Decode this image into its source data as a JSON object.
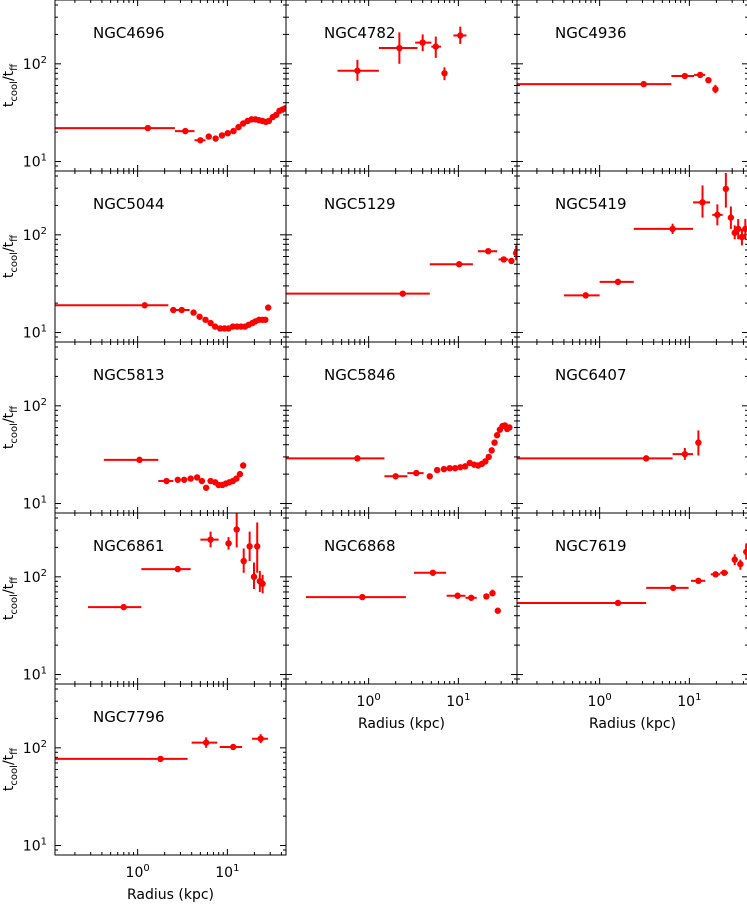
{
  "figure": {
    "ylabel_main": "t",
    "ylabel_sub1": "cool",
    "ylabel_sep": "/t",
    "ylabel_sub2": "ff",
    "xlabel": "Radius (kpc)",
    "marker_color": "#ff0000"
  },
  "chart_data": [
    {
      "type": "scatter",
      "title": "NGC4696",
      "xscale": "log",
      "yscale": "log",
      "xlim": [
        0.12,
        45
      ],
      "ylim": [
        8,
        450
      ],
      "y_tick_labels": [
        "10^1",
        "10^2"
      ],
      "points": [
        {
          "x": 1.3,
          "y": 22,
          "xerr": [
            0.12,
            2.6
          ]
        },
        {
          "x": 3.4,
          "y": 20.5,
          "xerr": [
            2.6,
            4.3
          ]
        },
        {
          "x": 5.0,
          "y": 16.5,
          "xerr": [
            4.3,
            5.7
          ]
        },
        {
          "x": 6.2,
          "y": 18
        },
        {
          "x": 7.4,
          "y": 17.2
        },
        {
          "x": 8.7,
          "y": 18.5
        },
        {
          "x": 10.1,
          "y": 19.5
        },
        {
          "x": 11.7,
          "y": 20.5
        },
        {
          "x": 13.3,
          "y": 22.5
        },
        {
          "x": 15.0,
          "y": 24.5
        },
        {
          "x": 16.8,
          "y": 26
        },
        {
          "x": 18.6,
          "y": 27
        },
        {
          "x": 20.5,
          "y": 27
        },
        {
          "x": 22.5,
          "y": 26.5
        },
        {
          "x": 24.6,
          "y": 26
        },
        {
          "x": 26.8,
          "y": 25.5
        },
        {
          "x": 29.0,
          "y": 26
        },
        {
          "x": 32.0,
          "y": 28.5
        },
        {
          "x": 35.0,
          "y": 30
        },
        {
          "x": 38.0,
          "y": 33
        },
        {
          "x": 41.0,
          "y": 34
        },
        {
          "x": 44.0,
          "y": 35
        }
      ]
    },
    {
      "type": "scatter",
      "title": "NGC4782",
      "xscale": "log",
      "yscale": "log",
      "xlim": [
        0.12,
        45
      ],
      "ylim": [
        8,
        450
      ],
      "points": [
        {
          "x": 0.75,
          "y": 85,
          "xerr": [
            0.45,
            1.3
          ],
          "yerr": [
            67,
            110
          ]
        },
        {
          "x": 2.2,
          "y": 145,
          "xerr": [
            1.3,
            3.5
          ],
          "yerr": [
            100,
            210
          ]
        },
        {
          "x": 4.0,
          "y": 165,
          "xerr": [
            3.3,
            5.0
          ],
          "yerr": [
            135,
            200
          ]
        },
        {
          "x": 5.6,
          "y": 150,
          "xerr": [
            5.0,
            6.4
          ],
          "yerr": [
            115,
            190
          ]
        },
        {
          "x": 7.0,
          "y": 80,
          "yerr": [
            68,
            92
          ]
        },
        {
          "x": 10.5,
          "y": 195,
          "xerr": [
            8.8,
            12.3
          ],
          "yerr": [
            160,
            240
          ]
        }
      ]
    },
    {
      "type": "scatter",
      "title": "NGC4936",
      "xscale": "log",
      "yscale": "log",
      "xlim": [
        0.12,
        45
      ],
      "ylim": [
        8,
        450
      ],
      "points": [
        {
          "x": 3.1,
          "y": 62,
          "xerr": [
            0.12,
            6.3
          ]
        },
        {
          "x": 8.9,
          "y": 75,
          "xerr": [
            6.3,
            11.3
          ]
        },
        {
          "x": 13.2,
          "y": 77,
          "xerr": [
            11.3,
            15.0
          ],
          "yerr": [
            72,
            82
          ]
        },
        {
          "x": 16.3,
          "y": 68
        },
        {
          "x": 19.5,
          "y": 55,
          "yerr": [
            50,
            61
          ]
        }
      ]
    },
    {
      "type": "scatter",
      "title": "NGC5044",
      "xscale": "log",
      "yscale": "log",
      "xlim": [
        0.12,
        45
      ],
      "ylim": [
        8,
        450
      ],
      "y_tick_labels": [
        "10^1",
        "10^2"
      ],
      "points": [
        {
          "x": 1.2,
          "y": 19,
          "xerr": [
            0.12,
            2.2
          ]
        },
        {
          "x": 2.5,
          "y": 17
        },
        {
          "x": 3.1,
          "y": 17,
          "xerr": [
            2.3,
            3.8
          ]
        },
        {
          "x": 4.2,
          "y": 16
        },
        {
          "x": 4.9,
          "y": 14.5
        },
        {
          "x": 5.7,
          "y": 13.5
        },
        {
          "x": 6.5,
          "y": 12.5
        },
        {
          "x": 7.3,
          "y": 11.5
        },
        {
          "x": 8.3,
          "y": 11
        },
        {
          "x": 9.3,
          "y": 11
        },
        {
          "x": 10.3,
          "y": 11
        },
        {
          "x": 11.5,
          "y": 11.5
        },
        {
          "x": 12.8,
          "y": 11.5
        },
        {
          "x": 14.2,
          "y": 11.5
        },
        {
          "x": 15.7,
          "y": 11.5
        },
        {
          "x": 17.3,
          "y": 12
        },
        {
          "x": 19.0,
          "y": 12.5
        },
        {
          "x": 20.5,
          "y": 13
        },
        {
          "x": 22.5,
          "y": 13.5
        },
        {
          "x": 24.5,
          "y": 13.5
        },
        {
          "x": 26.5,
          "y": 13.5
        },
        {
          "x": 28.5,
          "y": 18
        }
      ]
    },
    {
      "type": "scatter",
      "title": "NGC5129",
      "xscale": "log",
      "yscale": "log",
      "xlim": [
        0.12,
        45
      ],
      "ylim": [
        8,
        450
      ],
      "points": [
        {
          "x": 2.4,
          "y": 25,
          "xerr": [
            0.12,
            4.8
          ]
        },
        {
          "x": 10.2,
          "y": 50,
          "xerr": [
            4.8,
            14.5
          ]
        },
        {
          "x": 21.5,
          "y": 68,
          "xerr": [
            16.5,
            27.0
          ]
        },
        {
          "x": 32.0,
          "y": 56,
          "xerr": [
            28.0,
            36.0
          ]
        },
        {
          "x": 39.0,
          "y": 54
        },
        {
          "x": 44.0,
          "y": 65,
          "yerr": [
            55,
            78
          ]
        }
      ]
    },
    {
      "type": "scatter",
      "title": "NGC5419",
      "xscale": "log",
      "yscale": "log",
      "xlim": [
        0.12,
        45
      ],
      "ylim": [
        8,
        450
      ],
      "points": [
        {
          "x": 0.7,
          "y": 24,
          "xerr": [
            0.4,
            1.0
          ]
        },
        {
          "x": 1.6,
          "y": 33,
          "xerr": [
            1.0,
            2.4
          ]
        },
        {
          "x": 6.5,
          "y": 115,
          "xerr": [
            2.4,
            11.0
          ],
          "yerr": [
            102,
            130
          ]
        },
        {
          "x": 14.0,
          "y": 215,
          "xerr": [
            11.0,
            17.0
          ],
          "yerr": [
            150,
            320
          ]
        },
        {
          "x": 20.5,
          "y": 160,
          "xerr": [
            18.0,
            23.5
          ],
          "yerr": [
            125,
            205
          ]
        },
        {
          "x": 25.5,
          "y": 295,
          "yerr": [
            190,
            430
          ]
        },
        {
          "x": 29.0,
          "y": 150,
          "yerr": [
            115,
            195
          ]
        },
        {
          "x": 32.0,
          "y": 105,
          "yerr": [
            90,
            125
          ]
        },
        {
          "x": 35.0,
          "y": 115,
          "yerr": [
            90,
            145
          ]
        },
        {
          "x": 38.5,
          "y": 95,
          "yerr": [
            78,
            115
          ]
        },
        {
          "x": 42.0,
          "y": 115,
          "yerr": [
            90,
            145
          ]
        }
      ]
    },
    {
      "type": "scatter",
      "title": "NGC5813",
      "xscale": "log",
      "yscale": "log",
      "xlim": [
        0.12,
        45
      ],
      "ylim": [
        8,
        450
      ],
      "y_tick_labels": [
        "10^1",
        "10^2"
      ],
      "points": [
        {
          "x": 1.05,
          "y": 28,
          "xerr": [
            0.42,
            1.7
          ]
        },
        {
          "x": 2.1,
          "y": 17,
          "xerr": [
            1.7,
            2.5
          ]
        },
        {
          "x": 2.8,
          "y": 17.5
        },
        {
          "x": 3.3,
          "y": 17.5
        },
        {
          "x": 3.9,
          "y": 18
        },
        {
          "x": 4.6,
          "y": 18.5
        },
        {
          "x": 5.2,
          "y": 17
        },
        {
          "x": 5.8,
          "y": 14.5
        },
        {
          "x": 6.5,
          "y": 17
        },
        {
          "x": 7.3,
          "y": 16.5
        },
        {
          "x": 8.0,
          "y": 15.5
        },
        {
          "x": 8.8,
          "y": 15.5
        },
        {
          "x": 9.6,
          "y": 16
        },
        {
          "x": 10.5,
          "y": 16.5
        },
        {
          "x": 11.5,
          "y": 17
        },
        {
          "x": 12.6,
          "y": 18
        },
        {
          "x": 13.8,
          "y": 20
        },
        {
          "x": 15.0,
          "y": 24.5
        }
      ]
    },
    {
      "type": "scatter",
      "title": "NGC5846",
      "xscale": "log",
      "yscale": "log",
      "xlim": [
        0.12,
        45
      ],
      "ylim": [
        8,
        450
      ],
      "points": [
        {
          "x": 0.75,
          "y": 29,
          "xerr": [
            0.12,
            1.5
          ]
        },
        {
          "x": 2.0,
          "y": 19,
          "xerr": [
            1.5,
            2.7
          ]
        },
        {
          "x": 3.4,
          "y": 20.5,
          "xerr": [
            2.7,
            4.1
          ]
        },
        {
          "x": 4.8,
          "y": 19
        },
        {
          "x": 5.8,
          "y": 22
        },
        {
          "x": 6.9,
          "y": 22.5
        },
        {
          "x": 8.0,
          "y": 23
        },
        {
          "x": 9.2,
          "y": 23
        },
        {
          "x": 10.5,
          "y": 23.5
        },
        {
          "x": 11.9,
          "y": 24
        },
        {
          "x": 13.4,
          "y": 26
        },
        {
          "x": 15.0,
          "y": 25
        },
        {
          "x": 16.6,
          "y": 24.5
        },
        {
          "x": 18.3,
          "y": 25.5
        },
        {
          "x": 20.0,
          "y": 27
        },
        {
          "x": 21.8,
          "y": 30
        },
        {
          "x": 23.5,
          "y": 35
        },
        {
          "x": 25.3,
          "y": 42
        },
        {
          "x": 27.0,
          "y": 50
        },
        {
          "x": 29.0,
          "y": 57
        },
        {
          "x": 31.0,
          "y": 62
        },
        {
          "x": 33.0,
          "y": 63
        },
        {
          "x": 35.0,
          "y": 58
        },
        {
          "x": 37.0,
          "y": 60
        }
      ]
    },
    {
      "type": "scatter",
      "title": "NGC6407",
      "xscale": "log",
      "yscale": "log",
      "xlim": [
        0.12,
        45
      ],
      "ylim": [
        8,
        450
      ],
      "points": [
        {
          "x": 3.3,
          "y": 29,
          "xerr": [
            0.12,
            6.5
          ]
        },
        {
          "x": 8.9,
          "y": 32,
          "xerr": [
            6.5,
            11.0
          ],
          "yerr": [
            28,
            37
          ]
        },
        {
          "x": 12.6,
          "y": 42,
          "yerr": [
            31,
            56
          ]
        }
      ]
    },
    {
      "type": "scatter",
      "title": "NGC6861",
      "xscale": "log",
      "yscale": "log",
      "xlim": [
        0.12,
        45
      ],
      "ylim": [
        8,
        450
      ],
      "y_tick_labels": [
        "10^1",
        "10^2"
      ],
      "points": [
        {
          "x": 0.7,
          "y": 49,
          "xerr": [
            0.28,
            1.1
          ]
        },
        {
          "x": 2.8,
          "y": 120,
          "xerr": [
            1.1,
            3.9
          ]
        },
        {
          "x": 6.5,
          "y": 240,
          "xerr": [
            5.0,
            8.0
          ],
          "yerr": [
            200,
            290
          ]
        },
        {
          "x": 10.3,
          "y": 220,
          "xerr": [
            9.5,
            11.2
          ],
          "yerr": [
            190,
            255
          ]
        },
        {
          "x": 12.7,
          "y": 305,
          "yerr": [
            200,
            480
          ]
        },
        {
          "x": 15.2,
          "y": 145,
          "yerr": [
            110,
            195
          ]
        },
        {
          "x": 17.7,
          "y": 205,
          "yerr": [
            145,
            290
          ]
        },
        {
          "x": 19.8,
          "y": 100,
          "yerr": [
            75,
            140
          ]
        },
        {
          "x": 21.5,
          "y": 205,
          "yerr": [
            110,
            360
          ]
        },
        {
          "x": 23.0,
          "y": 90,
          "yerr": [
            70,
            115
          ]
        },
        {
          "x": 24.7,
          "y": 85,
          "yerr": [
            68,
            105
          ]
        }
      ]
    },
    {
      "type": "scatter",
      "title": "NGC6868",
      "xscale": "log",
      "yscale": "log",
      "xlim": [
        0.12,
        45
      ],
      "ylim": [
        8,
        450
      ],
      "x_tick_labels": [
        "10^0",
        "10^1"
      ],
      "xlabel": "Radius (kpc)",
      "points": [
        {
          "x": 0.85,
          "y": 62,
          "xerr": [
            0.2,
            2.6
          ]
        },
        {
          "x": 5.2,
          "y": 110,
          "xerr": [
            3.2,
            7.3
          ]
        },
        {
          "x": 9.8,
          "y": 64,
          "xerr": [
            7.4,
            12.0
          ]
        },
        {
          "x": 13.9,
          "y": 61,
          "xerr": [
            12.0,
            16.0
          ]
        },
        {
          "x": 20.5,
          "y": 63
        },
        {
          "x": 24.0,
          "y": 68,
          "yerr": [
            63,
            74
          ]
        },
        {
          "x": 27.5,
          "y": 45
        }
      ]
    },
    {
      "type": "scatter",
      "title": "NGC7619",
      "xscale": "log",
      "yscale": "log",
      "xlim": [
        0.12,
        45
      ],
      "ylim": [
        8,
        450
      ],
      "x_tick_labels": [
        "10^0",
        "10^1"
      ],
      "xlabel": "Radius (kpc)",
      "points": [
        {
          "x": 1.6,
          "y": 54,
          "xerr": [
            0.12,
            3.3
          ]
        },
        {
          "x": 6.6,
          "y": 77,
          "xerr": [
            3.3,
            9.8
          ]
        },
        {
          "x": 12.6,
          "y": 91,
          "xerr": [
            10.4,
            15.0
          ]
        },
        {
          "x": 19.6,
          "y": 106,
          "xerr": [
            17.3,
            22.0
          ]
        },
        {
          "x": 24.5,
          "y": 110,
          "xerr": [
            22.0,
            27.0
          ]
        },
        {
          "x": 32.0,
          "y": 150,
          "yerr": [
            132,
            170
          ]
        },
        {
          "x": 37.0,
          "y": 135,
          "yerr": [
            118,
            150
          ]
        },
        {
          "x": 43.0,
          "y": 180,
          "yerr": [
            150,
            220
          ]
        }
      ]
    },
    {
      "type": "scatter",
      "title": "NGC7796",
      "xscale": "log",
      "yscale": "log",
      "xlim": [
        0.12,
        45
      ],
      "ylim": [
        8,
        450
      ],
      "y_tick_labels": [
        "10^1",
        "10^2"
      ],
      "x_tick_labels": [
        "10^0",
        "10^1"
      ],
      "xlabel": "Radius (kpc)",
      "points": [
        {
          "x": 1.8,
          "y": 77,
          "xerr": [
            0.12,
            3.6
          ]
        },
        {
          "x": 5.8,
          "y": 113,
          "xerr": [
            4.0,
            7.7
          ],
          "yerr": [
            100,
            128
          ]
        },
        {
          "x": 11.6,
          "y": 102,
          "xerr": [
            8.2,
            14.6
          ]
        },
        {
          "x": 23.5,
          "y": 124,
          "xerr": [
            18.8,
            28.3
          ],
          "yerr": [
            112,
            138
          ]
        }
      ]
    }
  ]
}
